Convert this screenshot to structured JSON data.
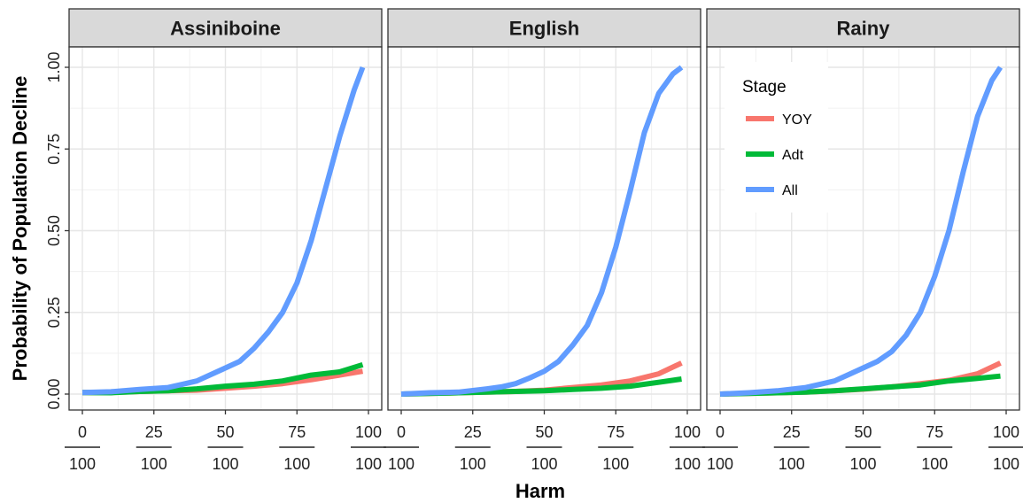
{
  "chart_data": {
    "type": "line",
    "xlabel": "Harm",
    "ylabel": "Probability of Population Decline",
    "xlim": [
      0,
      1
    ],
    "ylim": [
      0,
      1
    ],
    "x_ticks": [
      {
        "value": 0.0,
        "num": "0",
        "den": "100"
      },
      {
        "value": 0.25,
        "num": "25",
        "den": "100"
      },
      {
        "value": 0.5,
        "num": "50",
        "den": "100"
      },
      {
        "value": 0.75,
        "num": "75",
        "den": "100"
      },
      {
        "value": 1.0,
        "num": "100",
        "den": "100"
      }
    ],
    "y_ticks": [
      {
        "value": 0.0,
        "label": "0.00"
      },
      {
        "value": 0.25,
        "label": "0.25"
      },
      {
        "value": 0.5,
        "label": "0.50"
      },
      {
        "value": 0.75,
        "label": "0.75"
      },
      {
        "value": 1.0,
        "label": "1.00"
      }
    ],
    "grid": true,
    "legend": {
      "title": "Stage",
      "placement": "inside top of third panel",
      "entries": [
        {
          "label": "YOY",
          "color": "#F8766D"
        },
        {
          "label": "Adt",
          "color": "#00BA38"
        },
        {
          "label": "All",
          "color": "#619CFF"
        }
      ]
    },
    "panels": [
      {
        "title": "Assiniboine",
        "series": [
          {
            "name": "YOY",
            "color": "#F8766D",
            "x": [
              0,
              0.1,
              0.2,
              0.3,
              0.4,
              0.5,
              0.6,
              0.7,
              0.8,
              0.9,
              0.98
            ],
            "y": [
              0.005,
              0.005,
              0.008,
              0.01,
              0.012,
              0.018,
              0.024,
              0.032,
              0.044,
              0.058,
              0.07
            ]
          },
          {
            "name": "Adt",
            "color": "#00BA38",
            "x": [
              0,
              0.1,
              0.2,
              0.3,
              0.4,
              0.5,
              0.6,
              0.7,
              0.8,
              0.9,
              0.98
            ],
            "y": [
              0.005,
              0.004,
              0.008,
              0.01,
              0.016,
              0.024,
              0.03,
              0.04,
              0.058,
              0.068,
              0.09
            ]
          },
          {
            "name": "All",
            "color": "#619CFF",
            "x": [
              0,
              0.1,
              0.2,
              0.3,
              0.35,
              0.4,
              0.45,
              0.5,
              0.55,
              0.6,
              0.65,
              0.7,
              0.75,
              0.8,
              0.85,
              0.9,
              0.95,
              0.98
            ],
            "y": [
              0.005,
              0.007,
              0.014,
              0.02,
              0.03,
              0.04,
              0.06,
              0.08,
              0.1,
              0.14,
              0.19,
              0.25,
              0.34,
              0.47,
              0.63,
              0.79,
              0.93,
              1.0
            ]
          }
        ]
      },
      {
        "title": "English",
        "series": [
          {
            "name": "YOY",
            "color": "#F8766D",
            "x": [
              0,
              0.1,
              0.2,
              0.3,
              0.4,
              0.5,
              0.6,
              0.7,
              0.8,
              0.9,
              0.98
            ],
            "y": [
              0.0,
              0.002,
              0.004,
              0.006,
              0.008,
              0.012,
              0.02,
              0.028,
              0.04,
              0.062,
              0.095
            ]
          },
          {
            "name": "Adt",
            "color": "#00BA38",
            "x": [
              0,
              0.1,
              0.2,
              0.3,
              0.4,
              0.5,
              0.6,
              0.7,
              0.8,
              0.9,
              0.98
            ],
            "y": [
              0.0,
              0.002,
              0.004,
              0.006,
              0.008,
              0.01,
              0.014,
              0.018,
              0.024,
              0.036,
              0.046
            ]
          },
          {
            "name": "All",
            "color": "#619CFF",
            "x": [
              0,
              0.1,
              0.2,
              0.3,
              0.35,
              0.4,
              0.45,
              0.5,
              0.55,
              0.6,
              0.65,
              0.7,
              0.75,
              0.8,
              0.85,
              0.9,
              0.95,
              0.98
            ],
            "y": [
              0.0,
              0.004,
              0.006,
              0.016,
              0.022,
              0.032,
              0.05,
              0.07,
              0.1,
              0.15,
              0.21,
              0.31,
              0.45,
              0.62,
              0.8,
              0.92,
              0.98,
              1.0
            ]
          }
        ]
      },
      {
        "title": "Rainy",
        "series": [
          {
            "name": "YOY",
            "color": "#F8766D",
            "x": [
              0,
              0.1,
              0.2,
              0.3,
              0.4,
              0.5,
              0.6,
              0.7,
              0.8,
              0.9,
              0.98
            ],
            "y": [
              0.0,
              0.002,
              0.004,
              0.006,
              0.01,
              0.015,
              0.022,
              0.032,
              0.042,
              0.062,
              0.095
            ]
          },
          {
            "name": "Adt",
            "color": "#00BA38",
            "x": [
              0,
              0.1,
              0.2,
              0.3,
              0.4,
              0.5,
              0.6,
              0.7,
              0.8,
              0.9,
              0.98
            ],
            "y": [
              0.0,
              0.002,
              0.004,
              0.006,
              0.01,
              0.016,
              0.022,
              0.028,
              0.04,
              0.048,
              0.055
            ]
          },
          {
            "name": "All",
            "color": "#619CFF",
            "x": [
              0,
              0.1,
              0.2,
              0.3,
              0.35,
              0.4,
              0.45,
              0.5,
              0.55,
              0.6,
              0.65,
              0.7,
              0.75,
              0.8,
              0.85,
              0.9,
              0.95,
              0.98
            ],
            "y": [
              0.0,
              0.004,
              0.01,
              0.02,
              0.03,
              0.04,
              0.06,
              0.08,
              0.1,
              0.13,
              0.18,
              0.25,
              0.36,
              0.5,
              0.68,
              0.85,
              0.96,
              1.0
            ]
          }
        ]
      }
    ]
  }
}
